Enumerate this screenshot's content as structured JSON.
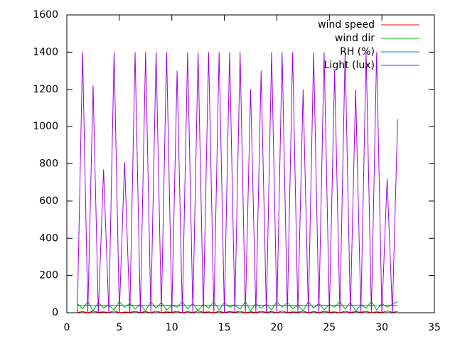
{
  "chart_data": {
    "type": "line",
    "x": [
      1,
      1.5,
      2,
      2.5,
      3,
      3.5,
      4,
      4.5,
      5,
      5.5,
      6,
      6.5,
      7,
      7.5,
      8,
      8.5,
      9,
      9.5,
      10,
      10.5,
      11,
      11.5,
      12,
      12.5,
      13,
      13.5,
      14,
      14.5,
      15,
      15.5,
      16,
      16.5,
      17,
      17.5,
      18,
      18.5,
      19,
      19.5,
      20,
      20.5,
      21,
      21.5,
      22,
      22.5,
      23,
      23.5,
      24,
      24.5,
      25,
      25.5,
      26,
      26.5,
      27,
      27.5,
      28,
      28.5,
      29,
      29.5,
      30,
      30.5,
      31,
      31.5
    ],
    "series": [
      {
        "name": "wind speed",
        "color": "#ff0000",
        "values": [
          2,
          6,
          1,
          8,
          3,
          5,
          2,
          9,
          1,
          4,
          3,
          7,
          2,
          6,
          1,
          8,
          2,
          5,
          3,
          7,
          1,
          6,
          2,
          9,
          3,
          5,
          1,
          7,
          2,
          6,
          3,
          8,
          1,
          5,
          2,
          7,
          3,
          6,
          1,
          9,
          2,
          5,
          3,
          8,
          1,
          6,
          2,
          7,
          3,
          5,
          1,
          8,
          2,
          6,
          3,
          7,
          1,
          5,
          2,
          9,
          3,
          6
        ]
      },
      {
        "name": "wind dir",
        "color": "#00b000",
        "values": [
          50,
          20,
          60,
          10,
          55,
          25,
          40,
          15,
          60,
          30,
          50,
          20,
          45,
          10,
          60,
          25,
          55,
          15,
          40,
          30,
          60,
          20,
          50,
          10,
          45,
          25,
          60,
          15,
          55,
          30,
          40,
          20,
          60,
          10,
          50,
          25,
          45,
          15,
          60,
          30,
          55,
          20,
          40,
          10,
          60,
          25,
          50,
          15,
          45,
          30,
          60,
          20,
          55,
          10,
          40,
          25,
          60,
          15,
          50,
          30,
          45,
          60
        ]
      },
      {
        "name": "RH (%)",
        "color": "#0080c0",
        "values": [
          40,
          38,
          41,
          37,
          40,
          39,
          42,
          38,
          40,
          37,
          41,
          39,
          40,
          38,
          42,
          37,
          40,
          39,
          41,
          38,
          40,
          37,
          42,
          39,
          40,
          38,
          41,
          37,
          40,
          39,
          42,
          38,
          40,
          37,
          41,
          39,
          40,
          38,
          42,
          37,
          40,
          39,
          41,
          38,
          40,
          37,
          42,
          39,
          40,
          38,
          41,
          37,
          40,
          39,
          42,
          38,
          40,
          37,
          41,
          39,
          40,
          38
        ]
      },
      {
        "name": "Light (lux)",
        "color": "#a000e0",
        "values": [
          0,
          1400,
          0,
          1220,
          0,
          770,
          0,
          1400,
          0,
          810,
          0,
          1400,
          0,
          1400,
          0,
          1400,
          0,
          1400,
          0,
          1300,
          0,
          1400,
          0,
          1400,
          0,
          1400,
          0,
          1400,
          0,
          1400,
          0,
          1400,
          0,
          1200,
          0,
          1300,
          0,
          1400,
          0,
          1400,
          0,
          1400,
          0,
          1200,
          0,
          1400,
          0,
          1400,
          0,
          1300,
          0,
          1400,
          0,
          1200,
          0,
          1400,
          0,
          1400,
          0,
          720,
          0,
          1040
        ]
      }
    ],
    "xlim": [
      0,
      35
    ],
    "xticks": [
      0,
      5,
      10,
      15,
      20,
      25,
      30,
      35
    ],
    "ylim": [
      0,
      1600
    ],
    "yticks": [
      0,
      200,
      400,
      600,
      800,
      1000,
      1200,
      1400,
      1600
    ],
    "legend": "top-right"
  }
}
